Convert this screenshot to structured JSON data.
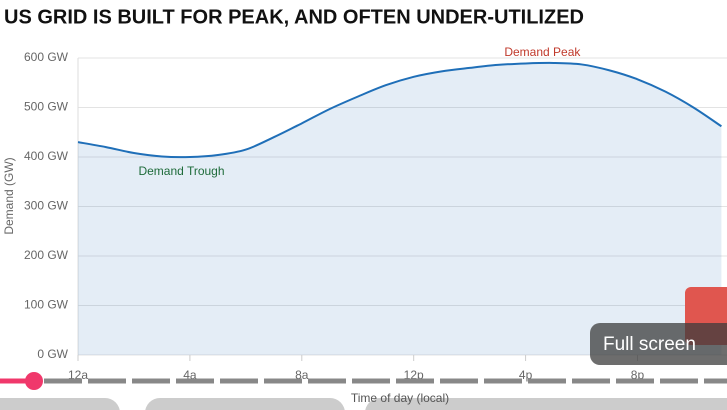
{
  "chart_data": {
    "type": "area",
    "title": "US GRID IS BUILT FOR PEAK, AND OFTEN UNDER-UTILIZED",
    "x_label": "Time of day (local)",
    "y_label": "Demand (GW)",
    "x": [
      0,
      1,
      2,
      3,
      4,
      5,
      6,
      7,
      8,
      9,
      10,
      11,
      12,
      13,
      14,
      15,
      16,
      17,
      18,
      19,
      20,
      21,
      22,
      23
    ],
    "series": [
      {
        "name": "Demand",
        "color": "#1f6fb8",
        "values": [
          430,
          420,
          408,
          401,
          400,
          404,
          415,
          440,
          468,
          497,
          522,
          545,
          562,
          573,
          580,
          586,
          589,
          590,
          587,
          575,
          557,
          532,
          500,
          462
        ]
      }
    ],
    "xlim": [
      0,
      23.2
    ],
    "xticks": [
      {
        "value": 0,
        "label": "12a"
      },
      {
        "value": 4,
        "label": "4a"
      },
      {
        "value": 8,
        "label": "8a"
      },
      {
        "value": 12,
        "label": "12p"
      },
      {
        "value": 16,
        "label": "4p"
      },
      {
        "value": 20,
        "label": "8p"
      }
    ],
    "ylim": [
      0,
      600
    ],
    "yticks": [
      {
        "value": 0,
        "label": "0 GW"
      },
      {
        "value": 100,
        "label": "100 GW"
      },
      {
        "value": 200,
        "label": "200 GW"
      },
      {
        "value": 300,
        "label": "300 GW"
      },
      {
        "value": 400,
        "label": "400 GW"
      },
      {
        "value": 500,
        "label": "500 GW"
      },
      {
        "value": 600,
        "label": "600 GW"
      }
    ],
    "grid": true,
    "annotations": [
      {
        "text": "Demand Peak",
        "x": 16.6,
        "y": 610,
        "color": "#c0392b"
      },
      {
        "text": "Demand Trough",
        "x": 3.7,
        "y": 370,
        "color": "#1e6b3a"
      }
    ]
  },
  "overlay": {
    "fullscreen": "Full screen"
  }
}
